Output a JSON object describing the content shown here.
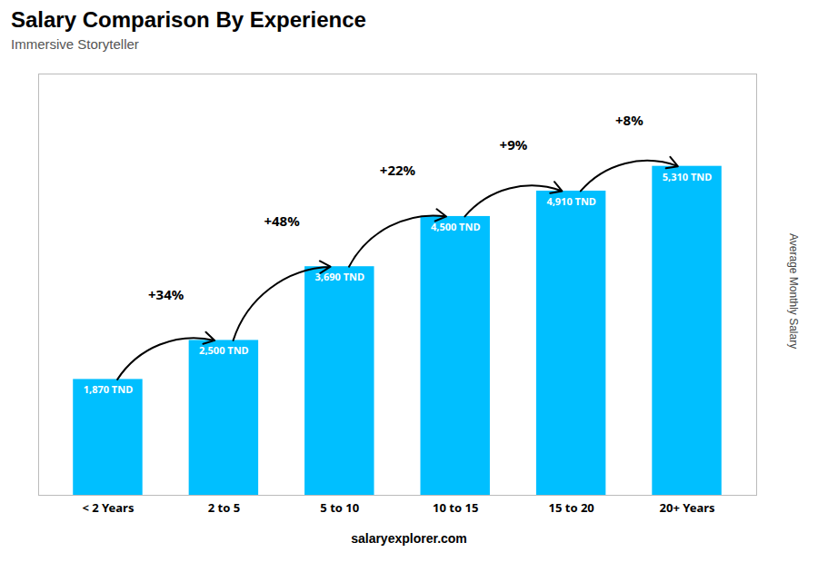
{
  "chart_data": {
    "type": "bar",
    "title": "Salary Comparison By Experience",
    "subtitle": "Immersive Storyteller",
    "ylabel": "Average Monthly Salary",
    "categories": [
      "< 2 Years",
      "2 to 5",
      "5 to 10",
      "10 to 15",
      "15 to 20",
      "20+ Years"
    ],
    "values": [
      1870,
      2500,
      3690,
      4500,
      4910,
      5310
    ],
    "value_labels": [
      "1,870 TND",
      "2,500 TND",
      "3,690 TND",
      "4,500 TND",
      "4,910 TND",
      "5,310 TND"
    ],
    "data_labels": true,
    "annotations": [
      "+34%",
      "+48%",
      "+22%",
      "+9%",
      "+8%"
    ],
    "caption": "salaryexplorer.com",
    "color": "#00BFFF",
    "ylim": [
      0,
      6800
    ],
    "tick_labels": "x",
    "grid": false
  }
}
